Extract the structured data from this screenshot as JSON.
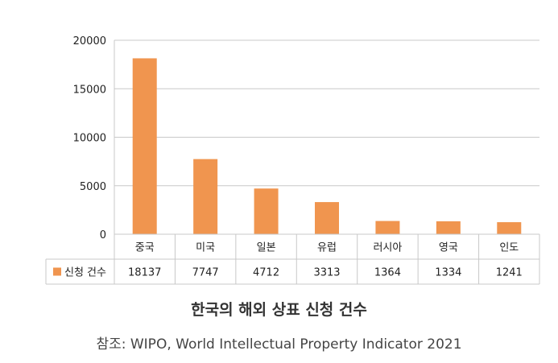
{
  "title": "한국의 해외 상표 신청 건수",
  "source": "참조: WIPO, World Intellectual Property Indicator 2021",
  "chart_data": {
    "type": "bar",
    "title": "한국의 해외 상표 신청 건수",
    "categories": [
      "중국",
      "미국",
      "일본",
      "유럽",
      "러시아",
      "영국",
      "인도"
    ],
    "series": [
      {
        "name": "신청 건수",
        "values": [
          18137,
          7747,
          4712,
          3313,
          1364,
          1334,
          1241
        ],
        "color": "#f0954f"
      }
    ],
    "y_ticks": [
      "0",
      "5000",
      "10000",
      "15000",
      "20000"
    ],
    "ylim": [
      0,
      20000
    ],
    "grid": true,
    "legend": "data-table",
    "data_table": true,
    "table_labels": [
      "18137",
      "7747",
      "4712",
      "3313",
      "1364",
      "1334",
      "1241"
    ]
  }
}
